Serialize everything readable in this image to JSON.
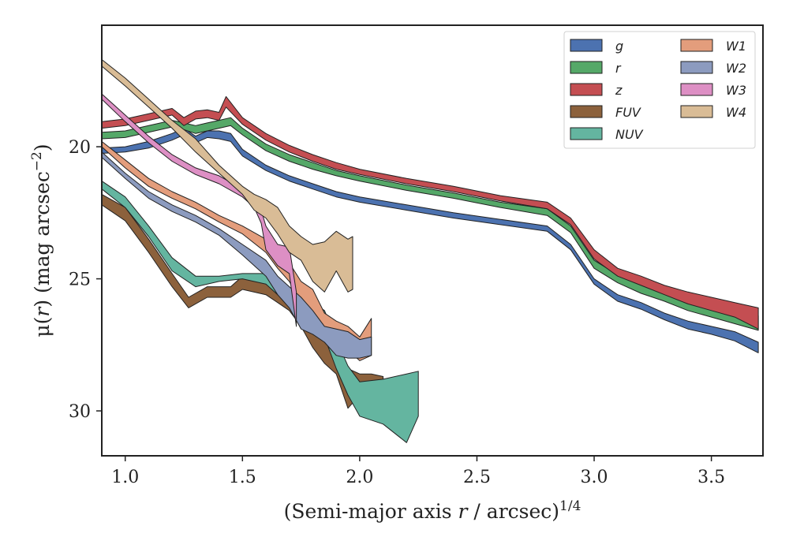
{
  "chart_data": {
    "type": "area",
    "title": "",
    "xlabel_main": "(Semi-major axis ",
    "xlabel_var": "r",
    "xlabel_tail": " / arcsec)",
    "xlabel_exp": "1/4",
    "ylabel_main": "μ(",
    "ylabel_var": "r",
    "ylabel_tail": ") (mag arcsec",
    "ylabel_exp": "−2",
    "ylabel_close": ")",
    "xlim": [
      0.9,
      3.72
    ],
    "ylim": [
      31.7,
      15.4
    ],
    "y_inverted": true,
    "xticks": [
      1.0,
      1.5,
      2.0,
      2.5,
      3.0,
      3.5
    ],
    "xtick_labels": [
      "1.0",
      "1.5",
      "2.0",
      "2.5",
      "3.0",
      "3.5"
    ],
    "yticks": [
      20,
      25,
      30
    ],
    "ytick_labels": [
      "20",
      "25",
      "30"
    ],
    "grid": false,
    "legend_position": "top-right",
    "legend_columns": 2,
    "series": [
      {
        "name": "g",
        "color": "#4c72b0",
        "x": [
          0.9,
          1.0,
          1.1,
          1.2,
          1.25,
          1.3,
          1.35,
          1.4,
          1.45,
          1.5,
          1.6,
          1.7,
          1.8,
          1.9,
          2.0,
          2.2,
          2.4,
          2.6,
          2.8,
          2.9,
          3.0,
          3.1,
          3.2,
          3.3,
          3.4,
          3.5,
          3.6,
          3.7
        ],
        "lo": [
          20.05,
          20.0,
          19.8,
          19.5,
          19.3,
          19.6,
          19.4,
          19.4,
          19.5,
          20.1,
          20.7,
          21.1,
          21.4,
          21.7,
          21.9,
          22.2,
          22.5,
          22.75,
          23.0,
          23.7,
          25.0,
          25.6,
          25.9,
          26.3,
          26.6,
          26.8,
          27.0,
          27.4
        ],
        "hi": [
          20.25,
          20.2,
          20.05,
          19.75,
          19.55,
          19.85,
          19.65,
          19.7,
          19.8,
          20.35,
          20.9,
          21.3,
          21.6,
          21.9,
          22.1,
          22.4,
          22.7,
          22.95,
          23.2,
          23.9,
          25.2,
          25.85,
          26.15,
          26.55,
          26.9,
          27.1,
          27.35,
          27.8
        ]
      },
      {
        "name": "r",
        "color": "#55a868",
        "x": [
          0.9,
          1.0,
          1.1,
          1.2,
          1.25,
          1.3,
          1.35,
          1.4,
          1.45,
          1.5,
          1.6,
          1.7,
          1.8,
          1.9,
          2.0,
          2.2,
          2.4,
          2.6,
          2.8,
          2.9,
          3.0,
          3.1,
          3.2,
          3.3,
          3.4,
          3.5,
          3.6,
          3.7
        ],
        "lo": [
          19.45,
          19.4,
          19.2,
          19.0,
          19.1,
          19.2,
          19.1,
          19.0,
          18.9,
          19.3,
          19.9,
          20.3,
          20.6,
          20.9,
          21.1,
          21.45,
          21.75,
          22.1,
          22.35,
          23.0,
          24.3,
          24.85,
          25.2,
          25.5,
          25.8,
          26.0,
          26.25,
          26.4
        ],
        "hi": [
          19.7,
          19.65,
          19.45,
          19.25,
          19.35,
          19.5,
          19.4,
          19.3,
          19.2,
          19.55,
          20.15,
          20.55,
          20.85,
          21.1,
          21.3,
          21.65,
          21.95,
          22.3,
          22.6,
          23.25,
          24.6,
          25.15,
          25.55,
          25.85,
          26.2,
          26.45,
          26.7,
          26.95
        ]
      },
      {
        "name": "z",
        "color": "#c44e52",
        "x": [
          0.9,
          1.0,
          1.1,
          1.2,
          1.25,
          1.3,
          1.35,
          1.4,
          1.43,
          1.5,
          1.6,
          1.7,
          1.8,
          1.9,
          2.0,
          2.2,
          2.4,
          2.6,
          2.8,
          2.9,
          3.0,
          3.1,
          3.2,
          3.3,
          3.4,
          3.5,
          3.6,
          3.7
        ],
        "lo": [
          19.05,
          18.95,
          18.75,
          18.55,
          18.9,
          18.65,
          18.6,
          18.7,
          18.1,
          18.9,
          19.5,
          19.95,
          20.3,
          20.6,
          20.85,
          21.2,
          21.5,
          21.85,
          22.1,
          22.7,
          23.9,
          24.6,
          24.9,
          25.25,
          25.5,
          25.7,
          25.9,
          26.1
        ],
        "hi": [
          19.3,
          19.2,
          19.0,
          18.8,
          19.2,
          18.95,
          18.9,
          19.0,
          18.5,
          19.15,
          19.75,
          20.2,
          20.55,
          20.85,
          21.05,
          21.4,
          21.7,
          22.05,
          22.35,
          22.95,
          24.25,
          24.9,
          25.25,
          25.6,
          25.95,
          26.2,
          26.45,
          26.9
        ]
      },
      {
        "name": "FUV",
        "color": "#8c613c",
        "x": [
          0.9,
          1.0,
          1.1,
          1.2,
          1.27,
          1.35,
          1.45,
          1.5,
          1.6,
          1.65,
          1.7,
          1.75,
          1.8,
          1.85,
          1.9,
          1.95,
          2.0,
          2.05,
          2.1
        ],
        "lo": [
          21.8,
          22.3,
          23.5,
          24.8,
          25.7,
          25.3,
          25.3,
          24.9,
          25.1,
          25.3,
          25.6,
          26.1,
          26.6,
          27.0,
          27.6,
          28.4,
          28.6,
          28.6,
          28.7
        ],
        "hi": [
          22.2,
          22.8,
          24.0,
          25.3,
          26.1,
          25.7,
          25.7,
          25.4,
          25.6,
          25.9,
          26.2,
          26.8,
          27.6,
          28.2,
          28.6,
          29.9,
          29.4,
          29.5,
          29.6
        ]
      },
      {
        "name": "NUV",
        "color": "#64b5a0",
        "x": [
          0.9,
          1.0,
          1.1,
          1.2,
          1.3,
          1.4,
          1.5,
          1.6,
          1.65,
          1.7,
          1.75,
          1.8,
          1.85,
          1.9,
          1.95,
          2.0,
          2.1,
          2.2,
          2.25
        ],
        "lo": [
          21.3,
          21.9,
          23.0,
          24.2,
          24.9,
          24.9,
          24.8,
          24.8,
          25.1,
          25.4,
          25.6,
          25.9,
          26.2,
          27.3,
          28.3,
          28.9,
          28.8,
          28.6,
          28.5
        ],
        "hi": [
          21.6,
          22.3,
          23.4,
          24.7,
          25.3,
          25.1,
          25.0,
          25.2,
          25.6,
          26.0,
          26.3,
          26.6,
          27.2,
          28.4,
          29.4,
          30.2,
          30.5,
          31.2,
          30.2
        ]
      },
      {
        "name": "W1",
        "color": "#e39d7c",
        "x": [
          0.9,
          1.0,
          1.1,
          1.2,
          1.3,
          1.4,
          1.5,
          1.6,
          1.65,
          1.7,
          1.75,
          1.8,
          1.85,
          1.9,
          1.95,
          2.0,
          2.05
        ],
        "lo": [
          19.8,
          20.5,
          21.2,
          21.7,
          22.1,
          22.6,
          23.0,
          23.5,
          24.0,
          24.4,
          25.1,
          25.4,
          26.3,
          26.6,
          26.8,
          27.2,
          26.5
        ],
        "hi": [
          20.0,
          20.8,
          21.5,
          21.95,
          22.35,
          22.85,
          23.3,
          24.0,
          24.6,
          25.1,
          25.9,
          26.4,
          27.1,
          27.4,
          27.7,
          28.1,
          27.9
        ]
      },
      {
        "name": "W2",
        "color": "#8c9bbf",
        "x": [
          0.9,
          1.0,
          1.1,
          1.2,
          1.3,
          1.4,
          1.5,
          1.6,
          1.65,
          1.7,
          1.75,
          1.8,
          1.85,
          1.9,
          1.95,
          2.0,
          2.05
        ],
        "lo": [
          20.2,
          21.0,
          21.7,
          22.2,
          22.6,
          23.1,
          23.7,
          24.3,
          24.9,
          25.3,
          25.7,
          26.2,
          26.8,
          26.9,
          27.0,
          27.3,
          27.2
        ],
        "hi": [
          20.4,
          21.2,
          21.95,
          22.45,
          22.85,
          23.35,
          24.1,
          24.9,
          25.6,
          26.1,
          26.9,
          27.1,
          27.4,
          27.9,
          28.0,
          28.0,
          27.9
        ]
      },
      {
        "name": "W3",
        "color": "#dd8fc4",
        "x": [
          0.9,
          1.0,
          1.1,
          1.2,
          1.3,
          1.4,
          1.5,
          1.55,
          1.58,
          1.6,
          1.65,
          1.7,
          1.73
        ],
        "lo": [
          18.0,
          18.8,
          19.6,
          20.3,
          20.8,
          21.1,
          21.6,
          22.0,
          22.4,
          23.0,
          23.7,
          23.8,
          25.5
        ],
        "hi": [
          18.2,
          19.05,
          19.85,
          20.55,
          21.05,
          21.4,
          21.9,
          22.3,
          22.9,
          23.9,
          24.5,
          24.8,
          26.8
        ]
      },
      {
        "name": "W4",
        "color": "#d9bc96",
        "x": [
          0.9,
          1.0,
          1.1,
          1.2,
          1.3,
          1.4,
          1.5,
          1.55,
          1.6,
          1.65,
          1.7,
          1.75,
          1.8,
          1.85,
          1.9,
          1.95,
          1.97
        ],
        "lo": [
          16.7,
          17.4,
          18.2,
          19.0,
          19.7,
          20.7,
          21.5,
          21.8,
          22.0,
          22.3,
          23.0,
          23.4,
          23.7,
          23.6,
          23.2,
          23.5,
          23.4
        ],
        "hi": [
          16.95,
          17.7,
          18.5,
          19.3,
          20.2,
          21.0,
          21.8,
          22.4,
          22.7,
          23.3,
          24.0,
          24.3,
          25.1,
          25.5,
          24.7,
          25.5,
          25.4
        ]
      }
    ]
  }
}
